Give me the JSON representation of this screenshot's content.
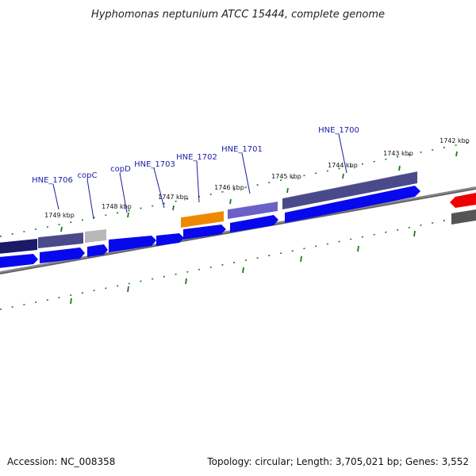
{
  "title": "Hyphomonas neptunium ATCC 15444, complete genome",
  "footer": {
    "accession": "Accession: NC_008358",
    "summary": "Topology: circular; Length: 3,705,021 bp; Genes: 3,552"
  },
  "kbp_labels": [
    "1749 kbp",
    "1748 kbp",
    "1747 kbp",
    "1746 kbp",
    "1745 kbp",
    "1744 kbp",
    "1743 kbp",
    "1742 kbp"
  ],
  "gene_labels": [
    "HNE_1706",
    "copC",
    "copD",
    "HNE_1703",
    "HNE_1702",
    "HNE_1701",
    "HNE_1700"
  ],
  "colors": {
    "cds_blue": "#0808ee",
    "dark_navy": "#1a1a66",
    "slate_purple": "#4a4a8a",
    "light_purple": "#6a60c8",
    "light_gray": "#b8b8b8",
    "orange": "#ee8800",
    "red": "#ee0000",
    "dark_gray": "#555555",
    "tick_green": "#1a7a1a",
    "backbone": "#777777",
    "label_blue": "#1a1aa8"
  }
}
